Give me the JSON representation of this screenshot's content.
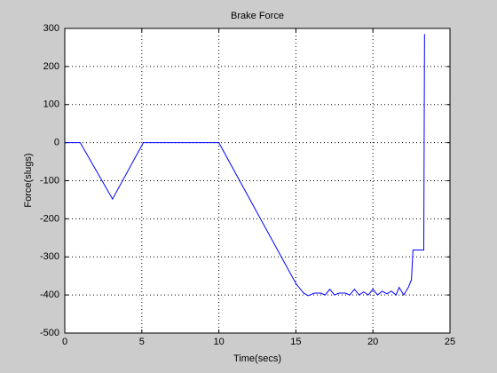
{
  "chart_data": {
    "type": "line",
    "title": "Brake Force",
    "x_label": "Time(secs)",
    "y_label": "Force(slugs)",
    "x": [
      0,
      1,
      3.1,
      5.1,
      10,
      15,
      15.5,
      15.8,
      16.2,
      16.6,
      16.9,
      17.2,
      17.5,
      17.8,
      18.2,
      18.5,
      18.8,
      19.1,
      19.4,
      19.7,
      20,
      20.3,
      20.6,
      20.9,
      21.2,
      21.5,
      21.7,
      22,
      22.3,
      22.5,
      22.6,
      23.3,
      23.35
    ],
    "series": [
      {
        "color": "#0000ff",
        "values": [
          0,
          0,
          -148,
          0,
          0,
          -370,
          -395,
          -402,
          -395,
          -395,
          -400,
          -385,
          -400,
          -395,
          -395,
          -400,
          -385,
          -400,
          -392,
          -400,
          -385,
          -400,
          -390,
          -397,
          -390,
          -400,
          -380,
          -400,
          -380,
          -360,
          -282,
          -282,
          285
        ]
      }
    ],
    "xlim": [
      0,
      25
    ],
    "xticks": [
      0,
      5,
      10,
      15,
      20,
      25
    ],
    "ylim": [
      -500,
      300
    ],
    "yticks": [
      -500,
      -400,
      -300,
      -200,
      -100,
      0,
      100,
      200,
      300
    ],
    "grid": true
  }
}
